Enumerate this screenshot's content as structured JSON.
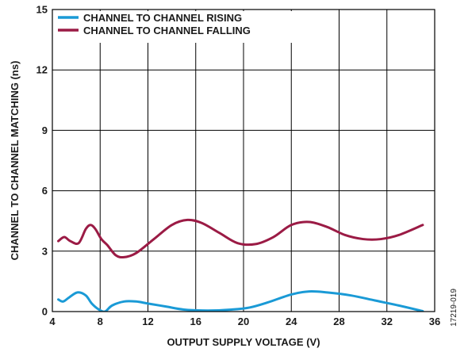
{
  "chart_data": {
    "type": "line",
    "title": "",
    "xlabel": "OUTPUT SUPPLY VOLTAGE (V)",
    "ylabel": "CHANNEL TO CHANNEL MATCHING (ns)",
    "xlim": [
      4,
      36
    ],
    "ylim": [
      0,
      15
    ],
    "x_ticks": [
      4,
      8,
      12,
      16,
      20,
      24,
      28,
      32,
      36
    ],
    "y_ticks": [
      0,
      3,
      6,
      9,
      12,
      15
    ],
    "x_tick_labels": [
      "4",
      "8",
      "12",
      "16",
      "20",
      "24",
      "28",
      "32",
      "36"
    ],
    "y_tick_labels": [
      "0",
      "3",
      "6",
      "9",
      "12",
      "15"
    ],
    "grid": true,
    "legend_position": "top-left",
    "figure_id": "17219-019",
    "series": [
      {
        "name": "CHANNEL TO CHANNEL RISING",
        "color": "#1a9ad6",
        "x": [
          4.5,
          4.9,
          5.4,
          6.1,
          6.8,
          7.3,
          7.9,
          8.4,
          9.0,
          10.0,
          11.0,
          12.0,
          13.5,
          15.0,
          17.0,
          19.0,
          20.5,
          22.0,
          24.0,
          25.5,
          27.0,
          29.0,
          31.0,
          33.0,
          35.0
        ],
        "y": [
          0.6,
          0.5,
          0.7,
          0.95,
          0.8,
          0.4,
          0.1,
          0.0,
          0.3,
          0.5,
          0.5,
          0.4,
          0.25,
          0.1,
          0.05,
          0.1,
          0.2,
          0.45,
          0.85,
          1.0,
          0.95,
          0.8,
          0.55,
          0.3,
          0.02
        ]
      },
      {
        "name": "CHANNEL TO CHANNEL FALLING",
        "color": "#9b1b45",
        "x": [
          4.5,
          5.0,
          5.5,
          6.2,
          6.8,
          7.2,
          7.6,
          8.1,
          8.6,
          9.3,
          10.0,
          11.0,
          12.5,
          14.0,
          15.3,
          16.5,
          18.0,
          19.5,
          21.0,
          22.5,
          24.0,
          25.5,
          27.0,
          28.5,
          30.0,
          31.5,
          33.0,
          35.0
        ],
        "y": [
          3.5,
          3.7,
          3.5,
          3.4,
          4.1,
          4.3,
          4.1,
          3.6,
          3.3,
          2.8,
          2.7,
          2.9,
          3.6,
          4.3,
          4.55,
          4.4,
          3.9,
          3.4,
          3.35,
          3.7,
          4.3,
          4.45,
          4.2,
          3.8,
          3.6,
          3.6,
          3.8,
          4.3
        ]
      }
    ]
  }
}
